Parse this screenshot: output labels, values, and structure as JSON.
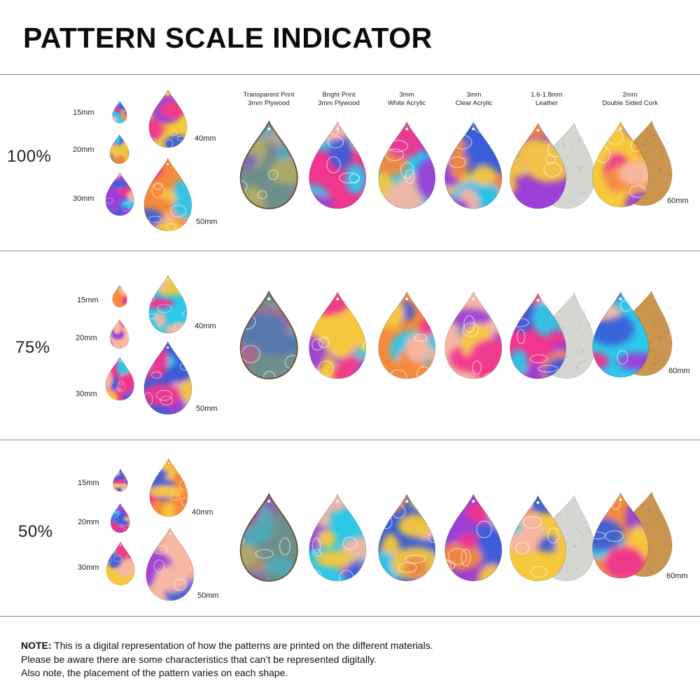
{
  "title": "PATTERN SCALE INDICATOR",
  "materials": [
    {
      "line1": "Transparent Print",
      "line2": "3mm Plywood",
      "fill": "transparent"
    },
    {
      "line1": "Bright Print",
      "line2": "3mm Plywood",
      "fill": "bright"
    },
    {
      "line1": "3mm",
      "line2": "White Acrylic",
      "fill": "bright"
    },
    {
      "line1": "3mm",
      "line2": "Clear Acrylic",
      "fill": "bright"
    },
    {
      "line1": "1.6-1.8mm",
      "line2": "Leather",
      "fill": "bright",
      "backing": "suede"
    },
    {
      "line1": "2mm",
      "line2": "Double Sided Cork",
      "fill": "bright",
      "backing": "cork"
    }
  ],
  "sizes": [
    "15mm",
    "20mm",
    "30mm",
    "40mm",
    "50mm"
  ],
  "large_size_label": "60mm",
  "scales": [
    "100%",
    "75%",
    "50%"
  ],
  "note": {
    "prefix": "NOTE:",
    "line1": "This is a digital representation of how the patterns are printed on the different materials.",
    "line2": "Please be aware there are some characteristics that can’t be represented digitally.",
    "line3": "Also note, the placement of the pattern varies on each shape."
  },
  "colors": {
    "pink": "#f0368e",
    "cyan": "#2cc8e8",
    "blue": "#3a5ed8",
    "purple": "#9b3fd6",
    "yellow": "#f6c83c",
    "orange": "#f58a3c",
    "peach": "#f7b7a3",
    "suede": "#d4d6d1",
    "cork": "#c9954f",
    "wood_edge": "#6e5236",
    "divider": "#8a8a8a"
  }
}
